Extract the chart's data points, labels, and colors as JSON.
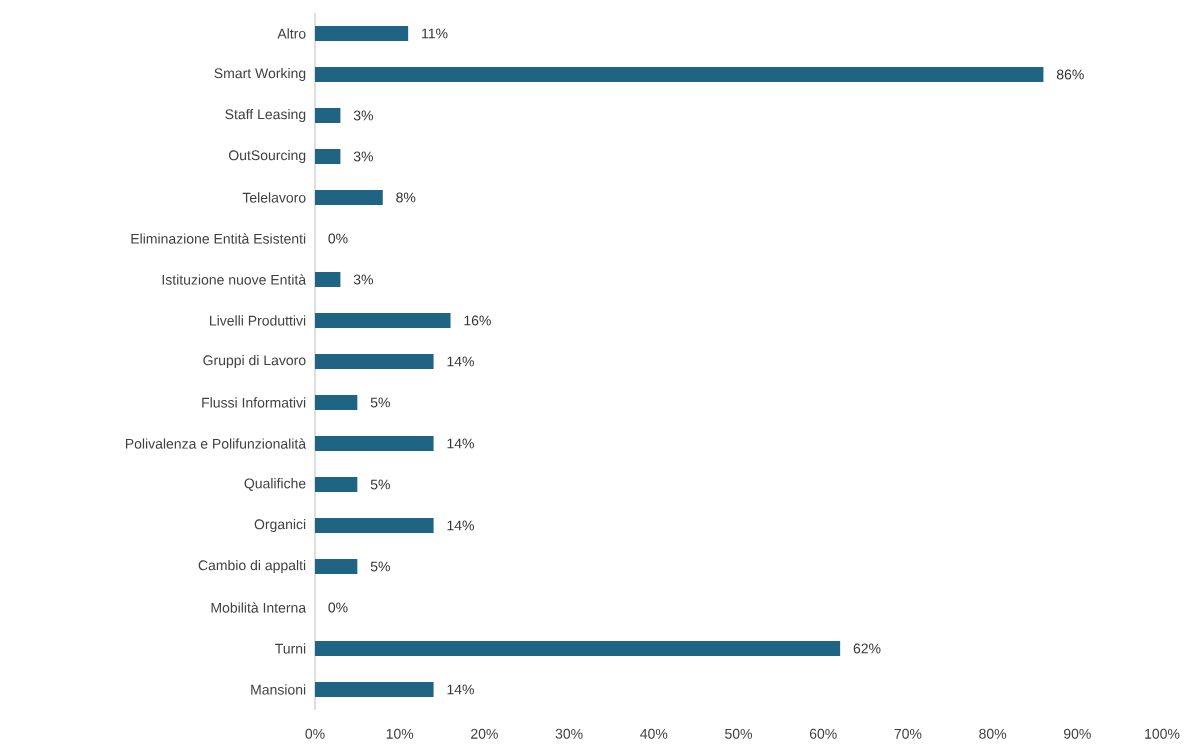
{
  "chart_data": {
    "type": "bar",
    "orientation": "horizontal",
    "categories": [
      "Altro",
      "Smart Working",
      "Staff Leasing",
      "OutSourcing",
      "Telelavoro",
      "Eliminazione Entità Esistenti",
      "Istituzione nuove Entità",
      "Livelli Produttivi",
      "Gruppi di Lavoro",
      "Flussi Informativi",
      "Polivalenza e Polifunzionalità",
      "Qualifiche",
      "Organici",
      "Cambio di appalti",
      "Mobilità Interna",
      "Turni",
      "Mansioni"
    ],
    "values": [
      11,
      86,
      3,
      3,
      8,
      0,
      3,
      16,
      14,
      5,
      14,
      5,
      14,
      5,
      0,
      62,
      14
    ],
    "value_labels": [
      "11%",
      "86%",
      "3%",
      "3%",
      "8%",
      "0%",
      "3%",
      "16%",
      "14%",
      "5%",
      "14%",
      "5%",
      "14%",
      "5%",
      "0%",
      "62%",
      "14%"
    ],
    "color": "#1f6482",
    "xlim": [
      0,
      100
    ],
    "xticks": [
      {
        "value": 0,
        "label": "0%"
      },
      {
        "value": 10,
        "label": "10%"
      },
      {
        "value": 20,
        "label": "20%"
      },
      {
        "value": 30,
        "label": "30%"
      },
      {
        "value": 40,
        "label": "40%"
      },
      {
        "value": 50,
        "label": "50%"
      },
      {
        "value": 60,
        "label": "60%"
      },
      {
        "value": 70,
        "label": "70%"
      },
      {
        "value": 80,
        "label": "80%"
      },
      {
        "value": 90,
        "label": "90%"
      },
      {
        "value": 100,
        "label": "100%"
      }
    ],
    "grid": false
  }
}
